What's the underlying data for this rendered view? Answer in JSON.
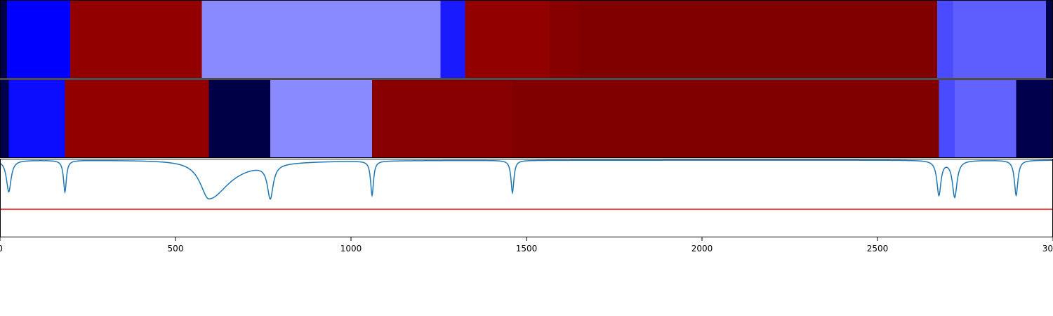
{
  "chart_data": [
    {
      "type": "heatmap",
      "xlim": [
        0,
        3000
      ],
      "colormap": "seismic",
      "segments": [
        {
          "x0": 0,
          "x1": 20,
          "color": "#00004d"
        },
        {
          "x0": 20,
          "x1": 200,
          "color": "#0000ff"
        },
        {
          "x0": 200,
          "x1": 575,
          "color": "#930000"
        },
        {
          "x0": 575,
          "x1": 1255,
          "color": "#8a8aff"
        },
        {
          "x0": 1255,
          "x1": 1325,
          "color": "#1a1aff"
        },
        {
          "x0": 1325,
          "x1": 1565,
          "color": "#930000"
        },
        {
          "x0": 1565,
          "x1": 1650,
          "color": "#860000"
        },
        {
          "x0": 1650,
          "x1": 2670,
          "color": "#800000"
        },
        {
          "x0": 2670,
          "x1": 2715,
          "color": "#4a4aff"
        },
        {
          "x0": 2715,
          "x1": 2980,
          "color": "#5e5eff"
        },
        {
          "x0": 2980,
          "x1": 3000,
          "color": "#00004d"
        }
      ]
    },
    {
      "type": "heatmap",
      "xlim": [
        0,
        3000
      ],
      "colormap": "seismic",
      "segments": [
        {
          "x0": 0,
          "x1": 25,
          "color": "#00004d"
        },
        {
          "x0": 25,
          "x1": 185,
          "color": "#0c0cff"
        },
        {
          "x0": 185,
          "x1": 595,
          "color": "#930000"
        },
        {
          "x0": 595,
          "x1": 770,
          "color": "#000046"
        },
        {
          "x0": 770,
          "x1": 1060,
          "color": "#8a8aff"
        },
        {
          "x0": 1060,
          "x1": 1460,
          "color": "#880000"
        },
        {
          "x0": 1460,
          "x1": 2675,
          "color": "#800000"
        },
        {
          "x0": 2675,
          "x1": 2720,
          "color": "#4a4aff"
        },
        {
          "x0": 2720,
          "x1": 2895,
          "color": "#6262ff"
        },
        {
          "x0": 2895,
          "x1": 3000,
          "color": "#00004d"
        }
      ]
    },
    {
      "type": "line",
      "xlim": [
        0,
        3000
      ],
      "ylim": [
        -1.1,
        0.02
      ],
      "xticks": [
        0,
        500,
        1000,
        1500,
        2000,
        2500,
        3000
      ],
      "xtick_labels": [
        "0",
        "500",
        "1000",
        "1500",
        "2000",
        "2500",
        "3000"
      ],
      "series": [
        {
          "color": "#1f77b4",
          "baseline": 0,
          "dips": [
            {
              "center": 25,
              "depth": 0.45,
              "width": 8
            },
            {
              "center": 185,
              "depth": 0.45,
              "width": 5
            },
            {
              "center": 595,
              "depth": 0.55,
              "width": 12,
              "left_width": 30,
              "right_width": 70
            },
            {
              "center": 770,
              "depth": 0.48,
              "width": 10
            },
            {
              "center": 1060,
              "depth": 0.49,
              "width": 5
            },
            {
              "center": 1460,
              "depth": 0.46,
              "width": 5
            },
            {
              "center": 2675,
              "depth": 0.49,
              "width": 7
            },
            {
              "center": 2720,
              "depth": 0.52,
              "width": 8
            },
            {
              "center": 2895,
              "depth": 0.5,
              "width": 6
            }
          ]
        }
      ],
      "hline": {
        "y": -0.7,
        "color": "#ff0000"
      }
    }
  ]
}
